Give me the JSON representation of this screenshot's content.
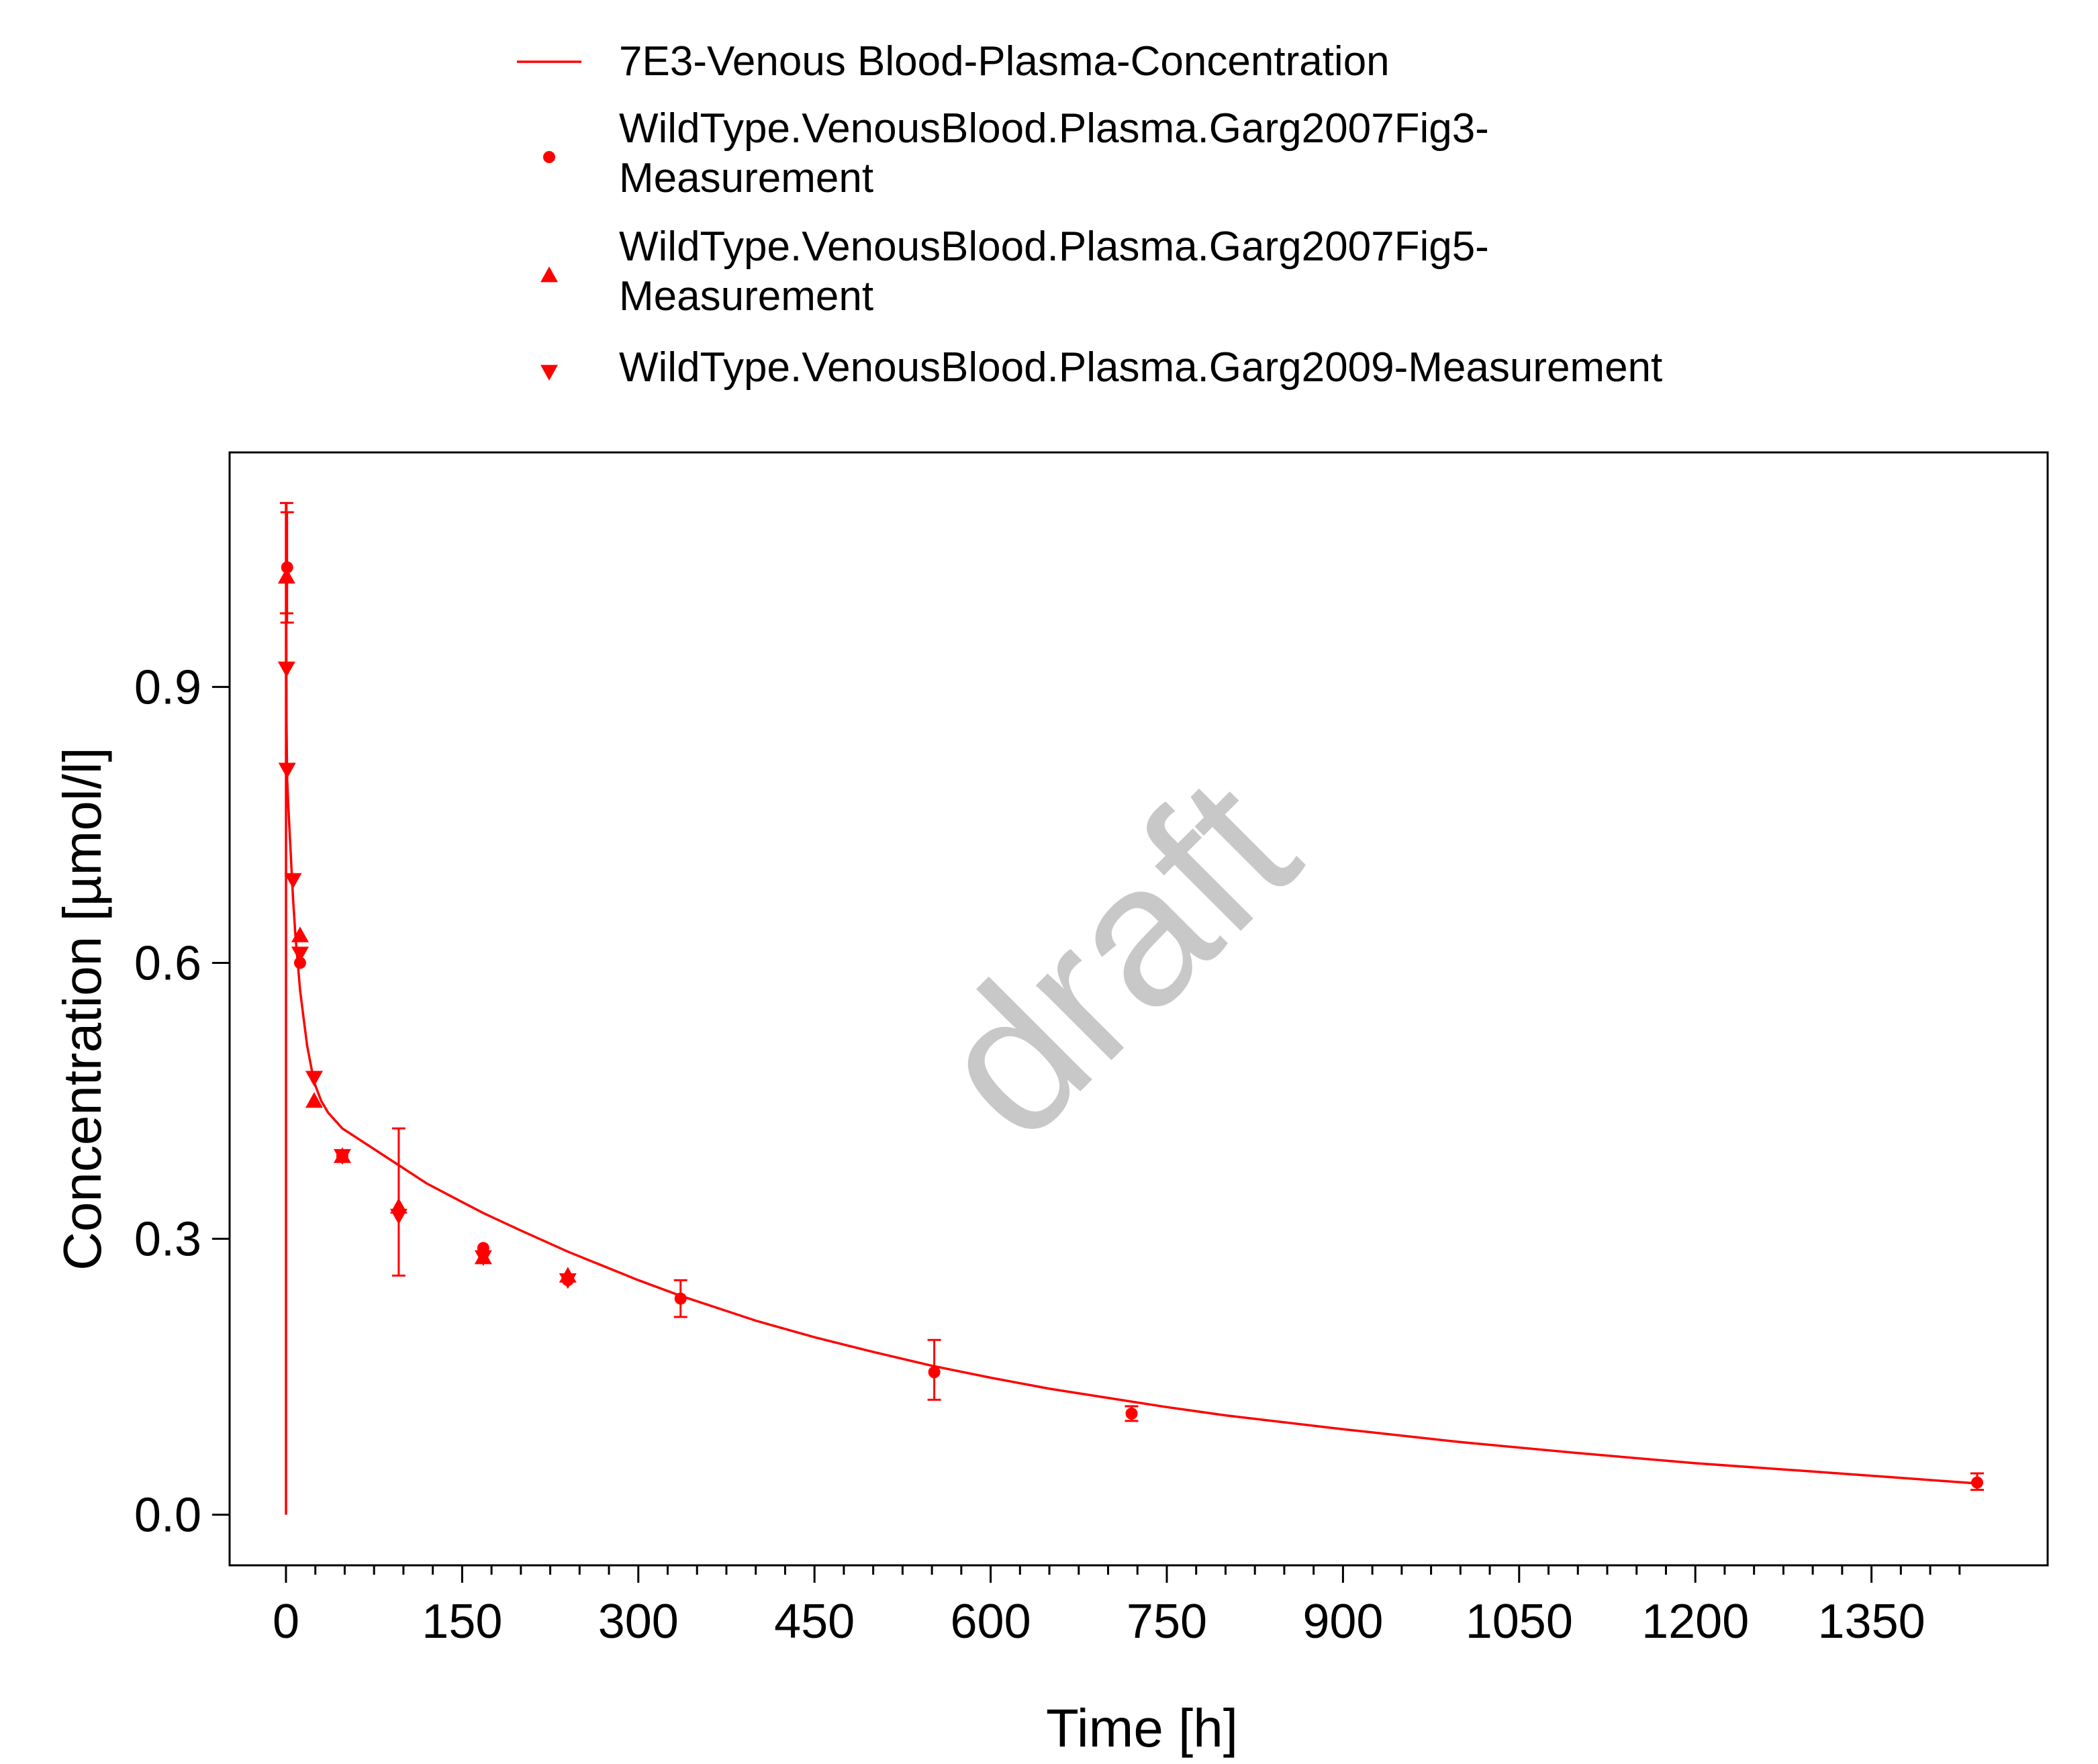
{
  "colors": {
    "series": "#ff0000",
    "axis": "#000000",
    "watermark": "#c8c8c8"
  },
  "watermark": "draft",
  "legend": {
    "entries": [
      {
        "symbol": "line",
        "lines": [
          "7E3-Venous Blood-Plasma-Concentration"
        ]
      },
      {
        "symbol": "circle",
        "lines": [
          "WildType.VenousBlood.Plasma.Garg2007Fig3-",
          "Measurement"
        ]
      },
      {
        "symbol": "triangle-up",
        "lines": [
          "WildType.VenousBlood.Plasma.Garg2007Fig5-",
          "Measurement"
        ]
      },
      {
        "symbol": "triangle-down",
        "lines": [
          "WildType.VenousBlood.Plasma.Garg2009-Measurement"
        ]
      }
    ]
  },
  "chart_data": {
    "type": "scatter",
    "title": "",
    "xlabel": "Time [h]",
    "ylabel": "Concentration [µmol/l]",
    "xlim": [
      -48,
      1500
    ],
    "ylim": [
      -0.055,
      1.155
    ],
    "x_ticks": [
      0,
      150,
      300,
      450,
      600,
      750,
      900,
      1050,
      1200,
      1350
    ],
    "x_tick_labels": [
      "0",
      "150",
      "300",
      "450",
      "600",
      "750",
      "900",
      "1050",
      "1200",
      "1350"
    ],
    "x_minor_ticks": [
      25,
      50,
      75,
      100,
      125,
      175,
      200,
      225,
      250,
      275,
      325,
      350,
      375,
      400,
      425,
      475,
      500,
      525,
      550,
      575,
      625,
      650,
      675,
      700,
      725,
      775,
      800,
      825,
      850,
      875,
      925,
      950,
      975,
      1000,
      1025,
      1075,
      1100,
      1125,
      1150,
      1175,
      1225,
      1250,
      1275,
      1300,
      1325,
      1375,
      1400,
      1425
    ],
    "y_ticks": [
      0.0,
      0.3,
      0.6,
      0.9
    ],
    "y_tick_labels": [
      "0.0",
      "0.3",
      "0.6",
      "0.9"
    ],
    "grid": false,
    "legend_position": "top",
    "simulation": {
      "name": "7E3-Venous Blood-Plasma-Concentration",
      "x": [
        0,
        0,
        0.5,
        1,
        2,
        3,
        4,
        5,
        6,
        8,
        10,
        12,
        15,
        18,
        21,
        24,
        30,
        36,
        48,
        60,
        72,
        96,
        120,
        150,
        168,
        200,
        240,
        300,
        336,
        400,
        450,
        500,
        550,
        600,
        650,
        700,
        750,
        800,
        900,
        1000,
        1100,
        1200,
        1300,
        1440
      ],
      "y": [
        0.0,
        1.1,
        0.86,
        0.8,
        0.77,
        0.745,
        0.72,
        0.695,
        0.67,
        0.63,
        0.6,
        0.57,
        0.54,
        0.51,
        0.49,
        0.47,
        0.45,
        0.437,
        0.42,
        0.41,
        0.4,
        0.38,
        0.36,
        0.34,
        0.328,
        0.309,
        0.286,
        0.255,
        0.238,
        0.211,
        0.193,
        0.177,
        0.162,
        0.149,
        0.137,
        0.127,
        0.117,
        0.108,
        0.093,
        0.079,
        0.067,
        0.056,
        0.047,
        0.034
      ]
    },
    "series": [
      {
        "name": "WildType.VenousBlood.Plasma.Garg2007Fig3-Measurement",
        "marker": "circle",
        "points": [
          {
            "x": 1,
            "y": 1.03,
            "err": [
              0.97,
              1.09
            ]
          },
          {
            "x": 12,
            "y": 0.6
          },
          {
            "x": 48,
            "y": 0.39
          },
          {
            "x": 96,
            "y": 0.33,
            "err": [
              0.26,
              0.42
            ]
          },
          {
            "x": 168,
            "y": 0.29
          },
          {
            "x": 240,
            "y": 0.255
          },
          {
            "x": 336,
            "y": 0.235,
            "err": [
              0.215,
              0.255
            ]
          },
          {
            "x": 552,
            "y": 0.155,
            "err": [
              0.125,
              0.19
            ]
          },
          {
            "x": 720,
            "y": 0.11,
            "err": [
              0.102,
              0.118
            ]
          },
          {
            "x": 1440,
            "y": 0.035,
            "err": [
              0.027,
              0.045
            ]
          }
        ]
      },
      {
        "name": "WildType.VenousBlood.Plasma.Garg2007Fig5-Measurement",
        "marker": "triangle-up",
        "points": [
          {
            "x": 0.5,
            "y": 1.02,
            "err": [
              0.98,
              1.1
            ]
          },
          {
            "x": 12,
            "y": 0.63
          },
          {
            "x": 24,
            "y": 0.45
          },
          {
            "x": 48,
            "y": 0.39
          },
          {
            "x": 96,
            "y": 0.335
          },
          {
            "x": 168,
            "y": 0.28
          },
          {
            "x": 240,
            "y": 0.26
          }
        ]
      },
      {
        "name": "WildType.VenousBlood.Plasma.Garg2009-Measurement",
        "marker": "triangle-down",
        "points": [
          {
            "x": 0.5,
            "y": 0.92
          },
          {
            "x": 1,
            "y": 0.81
          },
          {
            "x": 6,
            "y": 0.69
          },
          {
            "x": 12,
            "y": 0.61
          },
          {
            "x": 24,
            "y": 0.475
          },
          {
            "x": 48,
            "y": 0.39
          },
          {
            "x": 96,
            "y": 0.325
          },
          {
            "x": 168,
            "y": 0.28
          },
          {
            "x": 240,
            "y": 0.255
          }
        ]
      }
    ]
  }
}
